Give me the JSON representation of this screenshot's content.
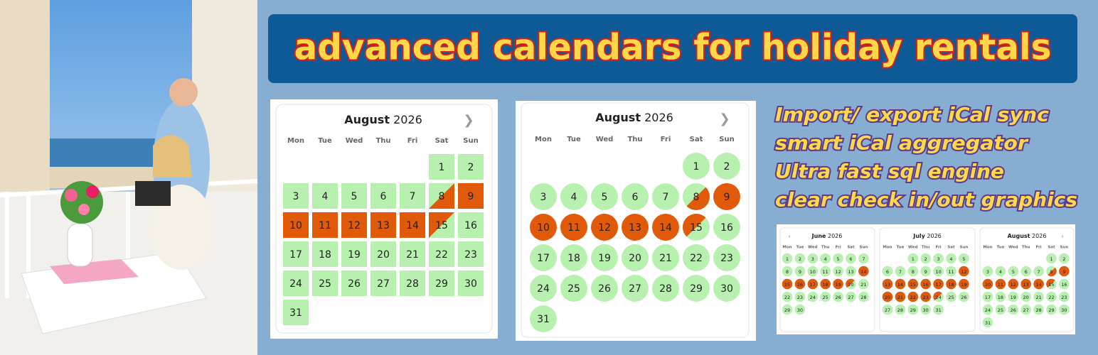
{
  "header": {
    "title": "advanced calendars for holiday rentals"
  },
  "features": [
    "Import/ export iCal sync",
    "smart iCal aggregator",
    "Ultra fast sql engine",
    "clear check in/out graphics"
  ],
  "weekdays": [
    "Mon",
    "Tue",
    "Wed",
    "Thu",
    "Fri",
    "Sat",
    "Sun"
  ],
  "months": [
    {
      "month": "June",
      "year": "2026",
      "days": [
        1,
        2,
        3,
        4,
        5,
        6,
        7,
        8,
        9,
        10,
        11,
        12,
        13,
        14,
        15,
        16,
        17,
        18,
        19,
        20,
        21,
        22,
        23,
        24,
        25,
        26,
        27,
        28,
        29,
        30
      ],
      "booked": [
        14,
        15,
        16,
        17,
        18,
        19
      ],
      "check_out": [
        20
      ]
    },
    {
      "month": "July",
      "year": "2026",
      "days": [
        null,
        null,
        1,
        2,
        3,
        4,
        5,
        6,
        7,
        8,
        9,
        10,
        11,
        12,
        13,
        14,
        15,
        16,
        17,
        18,
        19,
        20,
        21,
        22,
        23,
        24,
        25,
        26,
        27,
        28,
        29,
        30,
        31
      ],
      "booked": [
        12,
        13,
        14,
        15,
        16,
        17,
        18,
        19,
        20,
        21,
        22,
        23
      ],
      "check_out": [
        24
      ]
    },
    {
      "month": "August",
      "year": "2026",
      "days": [
        null,
        null,
        null,
        null,
        null,
        1,
        2,
        3,
        4,
        5,
        6,
        7,
        8,
        9,
        10,
        11,
        12,
        13,
        14,
        15,
        16,
        17,
        18,
        19,
        20,
        21,
        22,
        23,
        24,
        25,
        26,
        27,
        28,
        29,
        30,
        31
      ],
      "booked": [
        9,
        10,
        11,
        12,
        13,
        14
      ],
      "check_in": [
        8
      ],
      "check_out": [
        15
      ]
    }
  ]
}
